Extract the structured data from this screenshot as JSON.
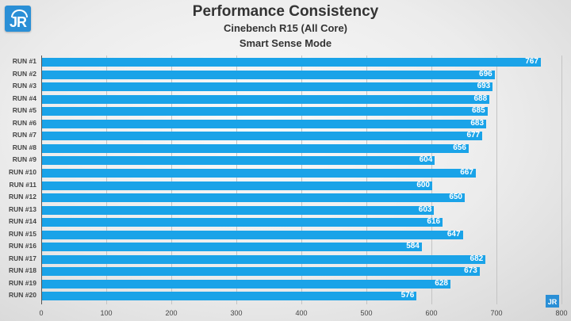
{
  "logo": {
    "text": "JR"
  },
  "header": {
    "title": "Performance Consistency",
    "subtitle1": "Cinebench R15 (All Core)",
    "subtitle2": "Smart Sense Mode"
  },
  "colors": {
    "bar": "#1aa3e8",
    "logo": "#2a8fd6"
  },
  "chart_data": {
    "type": "bar",
    "orientation": "horizontal",
    "title": "Performance Consistency",
    "subtitle": [
      "Cinebench R15 (All Core)",
      "Smart Sense Mode"
    ],
    "xlabel": "",
    "ylabel": "",
    "categories": [
      "RUN #1",
      "RUN #2",
      "RUN #3",
      "RUN #4",
      "RUN #5",
      "RUN #6",
      "RUN #7",
      "RUN #8",
      "RUN #9",
      "RUN #10",
      "RUN #11",
      "RUN #12",
      "RUN #13",
      "RUN #14",
      "RUN #15",
      "RUN #16",
      "RUN #17",
      "RUN #18",
      "RUN #19",
      "RUN #20"
    ],
    "values": [
      767,
      696,
      693,
      688,
      685,
      683,
      677,
      656,
      604,
      667,
      600,
      650,
      603,
      616,
      647,
      584,
      682,
      673,
      628,
      576
    ],
    "xlim": [
      0,
      800
    ],
    "xticks": [
      "0",
      "100",
      "200",
      "300",
      "400",
      "500",
      "600",
      "700",
      "800"
    ],
    "grid": true,
    "legend": null
  }
}
